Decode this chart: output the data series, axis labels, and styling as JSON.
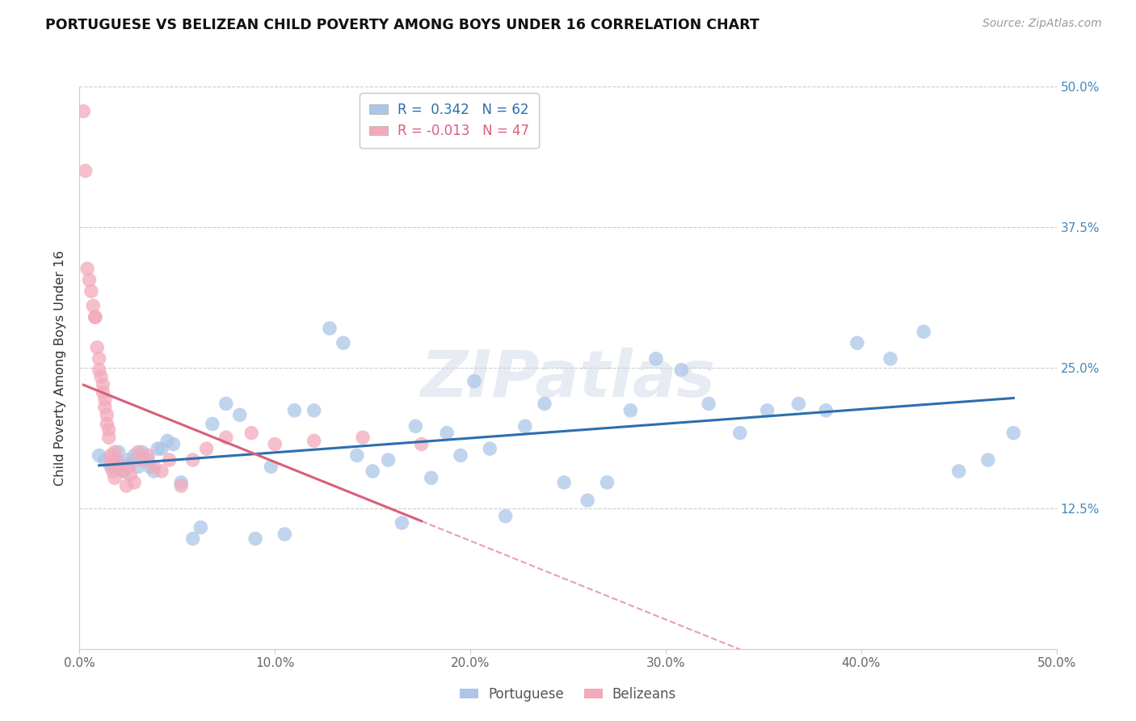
{
  "title": "PORTUGUESE VS BELIZEAN CHILD POVERTY AMONG BOYS UNDER 16 CORRELATION CHART",
  "source": "Source: ZipAtlas.com",
  "ylabel": "Child Poverty Among Boys Under 16",
  "xlim": [
    0,
    0.5
  ],
  "ylim": [
    0,
    0.5
  ],
  "xticks": [
    0.0,
    0.1,
    0.2,
    0.3,
    0.4,
    0.5
  ],
  "yticks": [
    0.0,
    0.125,
    0.25,
    0.375,
    0.5
  ],
  "legend_blue_r": "0.342",
  "legend_blue_n": "62",
  "legend_pink_r": "-0.013",
  "legend_pink_n": "47",
  "portuguese_color": "#adc6e8",
  "belizean_color": "#f2aabb",
  "portuguese_line_color": "#2c6fad",
  "belizean_line_color": "#d95f7a",
  "watermark": "ZIPatlas",
  "portuguese_x": [
    0.01,
    0.013,
    0.016,
    0.018,
    0.02,
    0.022,
    0.023,
    0.025,
    0.026,
    0.028,
    0.03,
    0.032,
    0.035,
    0.036,
    0.038,
    0.04,
    0.042,
    0.045,
    0.048,
    0.052,
    0.058,
    0.062,
    0.068,
    0.075,
    0.082,
    0.09,
    0.098,
    0.105,
    0.11,
    0.12,
    0.128,
    0.135,
    0.142,
    0.15,
    0.158,
    0.165,
    0.172,
    0.18,
    0.188,
    0.195,
    0.202,
    0.21,
    0.218,
    0.228,
    0.238,
    0.248,
    0.26,
    0.27,
    0.282,
    0.295,
    0.308,
    0.322,
    0.338,
    0.352,
    0.368,
    0.382,
    0.398,
    0.415,
    0.432,
    0.45,
    0.465,
    0.478
  ],
  "portuguese_y": [
    0.172,
    0.168,
    0.162,
    0.168,
    0.175,
    0.162,
    0.158,
    0.168,
    0.165,
    0.172,
    0.162,
    0.175,
    0.168,
    0.162,
    0.158,
    0.178,
    0.178,
    0.185,
    0.182,
    0.148,
    0.098,
    0.108,
    0.2,
    0.218,
    0.208,
    0.098,
    0.162,
    0.102,
    0.212,
    0.212,
    0.285,
    0.272,
    0.172,
    0.158,
    0.168,
    0.112,
    0.198,
    0.152,
    0.192,
    0.172,
    0.238,
    0.178,
    0.118,
    0.198,
    0.218,
    0.148,
    0.132,
    0.148,
    0.212,
    0.258,
    0.248,
    0.218,
    0.192,
    0.212,
    0.218,
    0.212,
    0.272,
    0.258,
    0.282,
    0.158,
    0.168,
    0.192
  ],
  "belizean_x": [
    0.002,
    0.003,
    0.004,
    0.005,
    0.006,
    0.007,
    0.008,
    0.008,
    0.009,
    0.01,
    0.01,
    0.011,
    0.012,
    0.012,
    0.013,
    0.013,
    0.014,
    0.014,
    0.015,
    0.015,
    0.016,
    0.016,
    0.017,
    0.018,
    0.018,
    0.019,
    0.02,
    0.022,
    0.024,
    0.025,
    0.026,
    0.028,
    0.03,
    0.032,
    0.035,
    0.038,
    0.042,
    0.046,
    0.052,
    0.058,
    0.065,
    0.075,
    0.088,
    0.1,
    0.12,
    0.145,
    0.175
  ],
  "belizean_y": [
    0.478,
    0.425,
    0.338,
    0.328,
    0.318,
    0.305,
    0.295,
    0.295,
    0.268,
    0.258,
    0.248,
    0.242,
    0.235,
    0.228,
    0.222,
    0.215,
    0.208,
    0.2,
    0.195,
    0.188,
    0.172,
    0.165,
    0.158,
    0.152,
    0.175,
    0.168,
    0.162,
    0.158,
    0.145,
    0.162,
    0.155,
    0.148,
    0.175,
    0.168,
    0.172,
    0.162,
    0.158,
    0.168,
    0.145,
    0.168,
    0.178,
    0.188,
    0.192,
    0.182,
    0.185,
    0.188,
    0.182
  ]
}
